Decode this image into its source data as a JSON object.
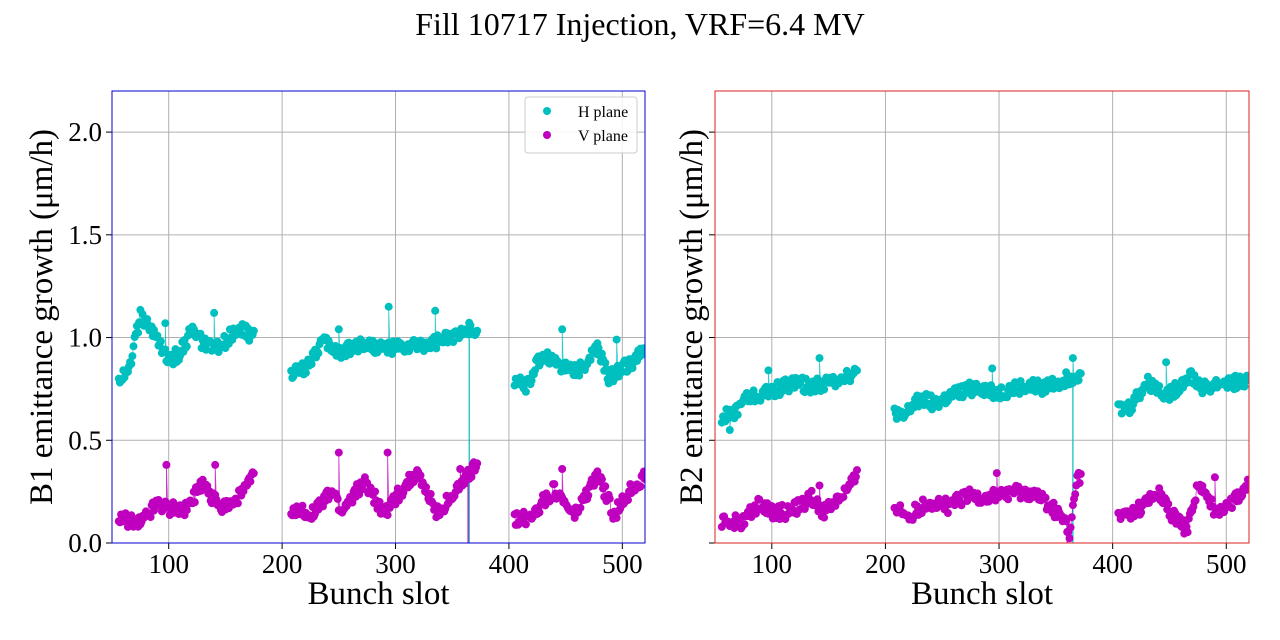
{
  "figure": {
    "title": "Fill 10717 Injection, VRF=6.4 MV"
  },
  "legend": {
    "h_label": "H plane",
    "v_label": "V plane",
    "placement": "upper-right of left panel"
  },
  "colors": {
    "h_plane": "#00bfbf",
    "v_plane": "#bf00bf",
    "b1_frame": "#0000cc",
    "b2_frame": "#dd2222",
    "grid": "#b0b0b0"
  },
  "chart_data": [
    {
      "type": "scatter",
      "panel": "B1",
      "xlabel": "Bunch slot",
      "ylabel": "B1 emittance growth (μm/h)",
      "xlim": [
        50,
        520
      ],
      "ylim": [
        0.0,
        2.2
      ],
      "xticks": [
        100,
        200,
        300,
        400,
        500
      ],
      "yticks": [
        0.0,
        0.5,
        1.0,
        1.5,
        2.0
      ],
      "xtick_labels": [
        "100",
        "200",
        "300",
        "400",
        "500"
      ],
      "ytick_labels": [
        "0.0",
        "0.5",
        "1.0",
        "1.5",
        "2.0"
      ],
      "grid": true,
      "legend": true,
      "series": [
        {
          "name": "H plane",
          "groups": [
            {
              "x_start": 56,
              "x_end": 175,
              "anchors": [
                [
                  56,
                  0.8
                ],
                [
                  65,
                  0.85
                ],
                [
                  75,
                  1.1
                ],
                [
                  90,
                  1.0
                ],
                [
                  100,
                  0.88
                ],
                [
                  110,
                  0.93
                ],
                [
                  120,
                  1.03
                ],
                [
                  135,
                  0.95
                ],
                [
                  145,
                  0.95
                ],
                [
                  160,
                  1.05
                ],
                [
                  175,
                  1.0
                ]
              ],
              "outliers": [
                [
                  97,
                  1.07
                ],
                [
                  140,
                  1.12
                ]
              ]
            },
            {
              "x_start": 208,
              "x_end": 372,
              "anchors": [
                [
                  208,
                  0.83
                ],
                [
                  220,
                  0.85
                ],
                [
                  235,
                  0.98
                ],
                [
                  250,
                  0.93
                ],
                [
                  270,
                  0.97
                ],
                [
                  290,
                  0.95
                ],
                [
                  310,
                  0.95
                ],
                [
                  330,
                  0.97
                ],
                [
                  350,
                  1.0
                ],
                [
                  362,
                  1.06
                ],
                [
                  372,
                  1.0
                ]
              ],
              "outliers": [
                [
                  250,
                  1.04
                ],
                [
                  294,
                  1.15
                ],
                [
                  335,
                  1.13
                ]
              ]
            },
            {
              "x_start": 405,
              "x_end": 520,
              "anchors": [
                [
                  405,
                  0.8
                ],
                [
                  415,
                  0.76
                ],
                [
                  430,
                  0.92
                ],
                [
                  450,
                  0.85
                ],
                [
                  465,
                  0.85
                ],
                [
                  478,
                  0.95
                ],
                [
                  488,
                  0.8
                ],
                [
                  500,
                  0.85
                ],
                [
                  520,
                  0.93
                ]
              ],
              "outliers": [
                [
                  447,
                  1.04
                ],
                [
                  495,
                  0.99
                ]
              ]
            }
          ],
          "dropouts": [
            [
              365,
              0.0
            ]
          ]
        },
        {
          "name": "V plane",
          "groups": [
            {
              "x_start": 56,
              "x_end": 175,
              "anchors": [
                [
                  56,
                  0.12
                ],
                [
                  75,
                  0.1
                ],
                [
                  90,
                  0.2
                ],
                [
                  100,
                  0.17
                ],
                [
                  115,
                  0.17
                ],
                [
                  130,
                  0.28
                ],
                [
                  145,
                  0.18
                ],
                [
                  158,
                  0.2
                ],
                [
                  175,
                  0.32
                ]
              ],
              "outliers": [
                [
                  98,
                  0.38
                ],
                [
                  141,
                  0.38
                ]
              ]
            },
            {
              "x_start": 208,
              "x_end": 372,
              "anchors": [
                [
                  208,
                  0.15
                ],
                [
                  228,
                  0.15
                ],
                [
                  245,
                  0.25
                ],
                [
                  252,
                  0.15
                ],
                [
                  272,
                  0.3
                ],
                [
                  290,
                  0.15
                ],
                [
                  318,
                  0.34
                ],
                [
                  337,
                  0.15
                ],
                [
                  355,
                  0.26
                ],
                [
                  372,
                  0.38
                ]
              ],
              "outliers": [
                [
                  250,
                  0.44
                ],
                [
                  293,
                  0.44
                ],
                [
                  357,
                  0.36
                ]
              ]
            },
            {
              "x_start": 405,
              "x_end": 520,
              "anchors": [
                [
                  405,
                  0.12
                ],
                [
                  417,
                  0.12
                ],
                [
                  440,
                  0.26
                ],
                [
                  458,
                  0.13
                ],
                [
                  478,
                  0.33
                ],
                [
                  493,
                  0.14
                ],
                [
                  510,
                  0.28
                ],
                [
                  520,
                  0.32
                ]
              ],
              "outliers": [
                [
                  447,
                  0.36
                ]
              ]
            }
          ],
          "dropouts": [
            [
              364,
              0.0
            ]
          ]
        }
      ]
    },
    {
      "type": "scatter",
      "panel": "B2",
      "xlabel": "Bunch slot",
      "ylabel": "B2 emittance growth (μm/h)",
      "xlim": [
        50,
        520
      ],
      "ylim": [
        0.0,
        2.2
      ],
      "xticks": [
        100,
        200,
        300,
        400,
        500
      ],
      "yticks": [
        0.0,
        0.5,
        1.0,
        1.5,
        2.0
      ],
      "xtick_labels": [
        "100",
        "200",
        "300",
        "400",
        "500"
      ],
      "ytick_labels": [],
      "grid": true,
      "legend": false,
      "series": [
        {
          "name": "H plane",
          "groups": [
            {
              "x_start": 56,
              "x_end": 175,
              "anchors": [
                [
                  56,
                  0.62
                ],
                [
                  66,
                  0.62
                ],
                [
                  75,
                  0.7
                ],
                [
                  90,
                  0.72
                ],
                [
                  105,
                  0.75
                ],
                [
                  120,
                  0.78
                ],
                [
                  135,
                  0.76
                ],
                [
                  150,
                  0.78
                ],
                [
                  165,
                  0.82
                ],
                [
                  175,
                  0.82
                ]
              ],
              "outliers": [
                [
                  63,
                  0.55
                ],
                [
                  97,
                  0.84
                ],
                [
                  142,
                  0.9
                ]
              ]
            },
            {
              "x_start": 208,
              "x_end": 372,
              "anchors": [
                [
                  208,
                  0.65
                ],
                [
                  215,
                  0.6
                ],
                [
                  228,
                  0.7
                ],
                [
                  245,
                  0.68
                ],
                [
                  260,
                  0.72
                ],
                [
                  280,
                  0.76
                ],
                [
                  300,
                  0.73
                ],
                [
                  320,
                  0.76
                ],
                [
                  340,
                  0.76
                ],
                [
                  360,
                  0.8
                ],
                [
                  372,
                  0.83
                ]
              ],
              "outliers": [
                [
                  294,
                  0.85
                ],
                [
                  365,
                  0.9
                ]
              ]
            },
            {
              "x_start": 405,
              "x_end": 520,
              "anchors": [
                [
                  405,
                  0.65
                ],
                [
                  415,
                  0.66
                ],
                [
                  430,
                  0.78
                ],
                [
                  450,
                  0.72
                ],
                [
                  468,
                  0.82
                ],
                [
                  480,
                  0.75
                ],
                [
                  495,
                  0.78
                ],
                [
                  510,
                  0.78
                ],
                [
                  520,
                  0.78
                ]
              ],
              "outliers": [
                [
                  447,
                  0.88
                ]
              ]
            }
          ],
          "dropouts": [
            [
              365,
              0.0
            ]
          ]
        },
        {
          "name": "V plane",
          "groups": [
            {
              "x_start": 56,
              "x_end": 175,
              "anchors": [
                [
                  56,
                  0.11
                ],
                [
                  75,
                  0.1
                ],
                [
                  90,
                  0.2
                ],
                [
                  100,
                  0.15
                ],
                [
                  115,
                  0.15
                ],
                [
                  135,
                  0.22
                ],
                [
                  145,
                  0.15
                ],
                [
                  165,
                  0.25
                ],
                [
                  175,
                  0.32
                ]
              ],
              "outliers": [
                [
                  142,
                  0.28
                ]
              ]
            },
            {
              "x_start": 208,
              "x_end": 372,
              "anchors": [
                [
                  208,
                  0.18
                ],
                [
                  220,
                  0.13
                ],
                [
                  238,
                  0.2
                ],
                [
                  255,
                  0.18
                ],
                [
                  275,
                  0.23
                ],
                [
                  290,
                  0.22
                ],
                [
                  310,
                  0.25
                ],
                [
                  330,
                  0.24
                ],
                [
                  345,
                  0.18
                ],
                [
                  358,
                  0.1
                ],
                [
                  362,
                  0.02
                ],
                [
                  368,
                  0.3
                ],
                [
                  372,
                  0.33
                ]
              ],
              "outliers": [
                [
                  298,
                  0.34
                ]
              ]
            },
            {
              "x_start": 405,
              "x_end": 520,
              "anchors": [
                [
                  405,
                  0.12
                ],
                [
                  420,
                  0.15
                ],
                [
                  440,
                  0.24
                ],
                [
                  455,
                  0.12
                ],
                [
                  465,
                  0.06
                ],
                [
                  475,
                  0.28
                ],
                [
                  490,
                  0.16
                ],
                [
                  505,
                  0.2
                ],
                [
                  520,
                  0.28
                ]
              ],
              "outliers": [
                [
                  490,
                  0.32
                ]
              ]
            }
          ],
          "dropouts": [
            [
              360,
              0.0
            ]
          ]
        }
      ]
    }
  ]
}
